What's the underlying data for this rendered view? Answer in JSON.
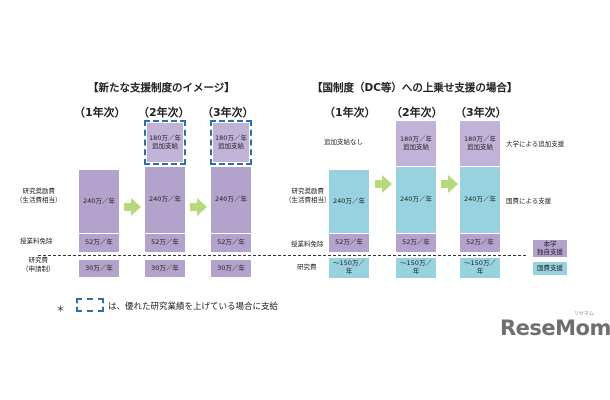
{
  "left": {
    "title": "【新たな支援制度のイメージ】",
    "years": [
      "（1年次）",
      "（2年次）",
      "（3年次）"
    ],
    "row_labels": {
      "living": "研究奨励費\n（生活費相当）",
      "tuition": "授業料免除",
      "research": "研究費\n（申請制）"
    },
    "extra": "180万／年\n追加支給",
    "living_value": "240万／年",
    "tuition_value": "52万／年",
    "research_value": "30万／年"
  },
  "right": {
    "title": "【国制度（DC等）への上乗せ支援の場合】",
    "years": [
      "（1年次）",
      "（2年次）",
      "（3年次）"
    ],
    "no_extra": "追加支給なし",
    "row_labels": {
      "living": "研究奨励費\n（生活費相当）",
      "tuition": "授業料免除",
      "research": "研究費"
    },
    "extra": "180万／年\n追加支給",
    "living_value": "240万／年",
    "tuition_value": "52万／年",
    "research_value": "～150万／\n年",
    "side_labels": {
      "university": "大学による追加支援",
      "national": "国費による支援"
    },
    "legend": {
      "university": "本学\n独自支援",
      "national": "国費支援"
    }
  },
  "footnote": {
    "asterisk": "＊",
    "text": "は、優れた研究業績を上げている場合に支給"
  },
  "logo": {
    "text": "ReseMom",
    "sub": "リセマム"
  },
  "colors": {
    "university_support": "#b3a2cc",
    "national_support": "#98d2e0",
    "arrow": "#b6d97a",
    "dashed_border": "#2f6fa8"
  }
}
